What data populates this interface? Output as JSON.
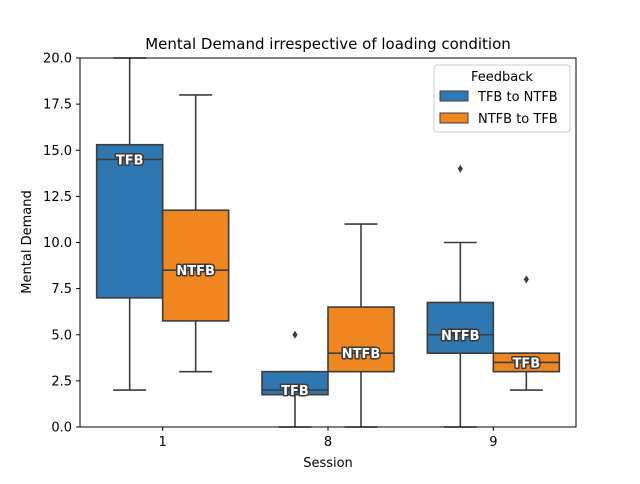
{
  "chart_data": {
    "type": "box",
    "title": "Mental Demand irrespective of loading condition",
    "xlabel": "Session",
    "ylabel": "Mental Demand",
    "categories": [
      "1",
      "8",
      "9"
    ],
    "ylim": [
      0,
      20
    ],
    "yticks": [
      "0.0",
      "2.5",
      "5.0",
      "7.5",
      "10.0",
      "12.5",
      "15.0",
      "17.5",
      "20.0"
    ],
    "grid": false,
    "legend": {
      "title": "Feedback",
      "placement": "top-right",
      "entries": [
        "TFB to NTFB",
        "NTFB to TFB"
      ]
    },
    "colors": {
      "TFB to NTFB": "#2f77b1",
      "NTFB to TFB": "#f0861f",
      "line": "#3d3d3d"
    },
    "series": [
      {
        "name": "TFB to NTFB",
        "boxes": [
          {
            "category": "1",
            "whisker_low": 2.0,
            "q1": 7.0,
            "median": 14.5,
            "q3": 15.3,
            "whisker_high": 20.0,
            "outliers": [],
            "label": "TFB"
          },
          {
            "category": "8",
            "whisker_low": 0.0,
            "q1": 1.75,
            "median": 2.0,
            "q3": 3.0,
            "whisker_high": 3.0,
            "outliers": [
              5.0
            ],
            "label": "TFB"
          },
          {
            "category": "9",
            "whisker_low": 0.0,
            "q1": 4.0,
            "median": 5.0,
            "q3": 6.75,
            "whisker_high": 10.0,
            "outliers": [
              14.0
            ],
            "label": "NTFB"
          }
        ]
      },
      {
        "name": "NTFB to TFB",
        "boxes": [
          {
            "category": "1",
            "whisker_low": 3.0,
            "q1": 5.75,
            "median": 8.5,
            "q3": 11.75,
            "whisker_high": 18.0,
            "outliers": [],
            "label": "NTFB"
          },
          {
            "category": "8",
            "whisker_low": 0.0,
            "q1": 3.0,
            "median": 4.0,
            "q3": 6.5,
            "whisker_high": 11.0,
            "outliers": [],
            "label": "NTFB"
          },
          {
            "category": "9",
            "whisker_low": 2.0,
            "q1": 3.0,
            "median": 3.5,
            "q3": 4.0,
            "whisker_high": 4.0,
            "outliers": [
              8.0
            ],
            "label": "TFB"
          }
        ]
      }
    ]
  }
}
